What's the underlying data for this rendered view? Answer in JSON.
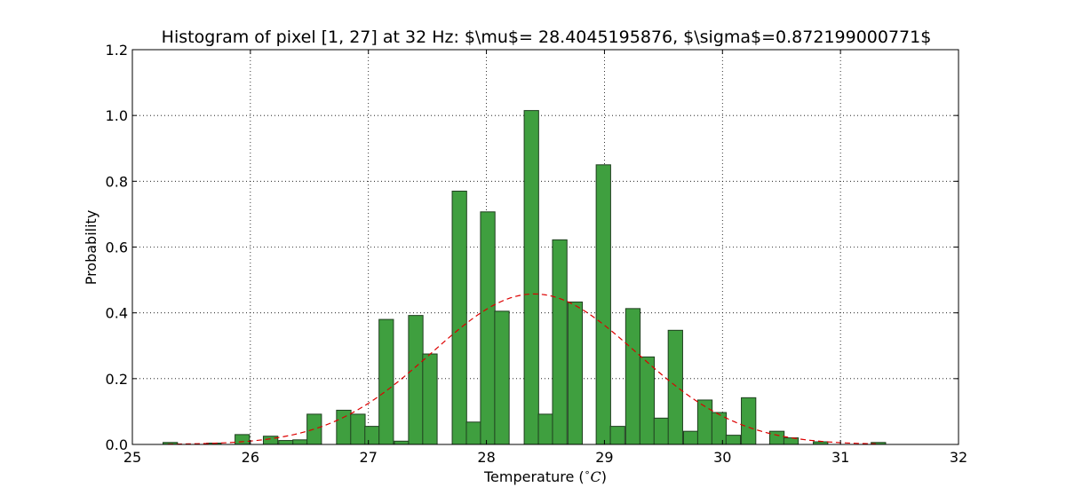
{
  "chart_data": {
    "type": "bar",
    "title": "Histogram of pixel [1, 27] at 32 Hz: $\\mu$= 28.4045195876, $\\sigma$=0.872199000771$",
    "xlabel": "Temperature ($^\\circ C$)",
    "xlabel_prefix": "Temperature (",
    "xlabel_sup": "∘",
    "xlabel_unit": "C",
    "xlabel_suffix": ")",
    "ylabel": "Probability",
    "xlim": [
      25,
      32
    ],
    "ylim": [
      0,
      1.2
    ],
    "xticks": [
      25,
      26,
      27,
      28,
      29,
      30,
      31,
      32
    ],
    "xtick_labels": [
      "25",
      "26",
      "27",
      "28",
      "29",
      "30",
      "31",
      "32"
    ],
    "yticks": [
      0,
      0.2,
      0.4,
      0.6,
      0.8,
      1.0,
      1.2
    ],
    "ytick_labels": [
      "0.0",
      "0.2",
      "0.4",
      "0.6",
      "0.8",
      "1.0",
      "1.2"
    ],
    "grid": true,
    "bin_width": 0.1225,
    "bins": [
      {
        "x": 25.26,
        "value": 0.006
      },
      {
        "x": 25.63,
        "value": 0.004
      },
      {
        "x": 25.87,
        "value": 0.03
      },
      {
        "x": 26.11,
        "value": 0.025
      },
      {
        "x": 26.24,
        "value": 0.012
      },
      {
        "x": 26.36,
        "value": 0.014
      },
      {
        "x": 26.48,
        "value": 0.092
      },
      {
        "x": 26.73,
        "value": 0.104
      },
      {
        "x": 26.85,
        "value": 0.092
      },
      {
        "x": 26.97,
        "value": 0.055
      },
      {
        "x": 27.09,
        "value": 0.38
      },
      {
        "x": 27.22,
        "value": 0.01
      },
      {
        "x": 27.34,
        "value": 0.392
      },
      {
        "x": 27.46,
        "value": 0.275
      },
      {
        "x": 27.71,
        "value": 0.77
      },
      {
        "x": 27.83,
        "value": 0.068
      },
      {
        "x": 27.95,
        "value": 0.707
      },
      {
        "x": 28.07,
        "value": 0.405
      },
      {
        "x": 28.32,
        "value": 1.015
      },
      {
        "x": 28.44,
        "value": 0.092
      },
      {
        "x": 28.56,
        "value": 0.622
      },
      {
        "x": 28.69,
        "value": 0.433
      },
      {
        "x": 28.93,
        "value": 0.85
      },
      {
        "x": 29.05,
        "value": 0.055
      },
      {
        "x": 29.18,
        "value": 0.413
      },
      {
        "x": 29.3,
        "value": 0.266
      },
      {
        "x": 29.42,
        "value": 0.08
      },
      {
        "x": 29.54,
        "value": 0.347
      },
      {
        "x": 29.67,
        "value": 0.04
      },
      {
        "x": 29.79,
        "value": 0.135
      },
      {
        "x": 29.91,
        "value": 0.097
      },
      {
        "x": 30.03,
        "value": 0.028
      },
      {
        "x": 30.16,
        "value": 0.142
      },
      {
        "x": 30.4,
        "value": 0.04
      },
      {
        "x": 30.52,
        "value": 0.02
      },
      {
        "x": 30.77,
        "value": 0.008
      },
      {
        "x": 31.26,
        "value": 0.006
      }
    ],
    "fit": {
      "type": "normal",
      "mu": 28.4045195876,
      "sigma": 0.872199000771,
      "style": "dashed"
    },
    "colors": {
      "bar_fill": "#3f9f3f",
      "bar_edge": "#1f3f1f",
      "fit_line": "#dd0000",
      "grid": "#000000"
    }
  }
}
